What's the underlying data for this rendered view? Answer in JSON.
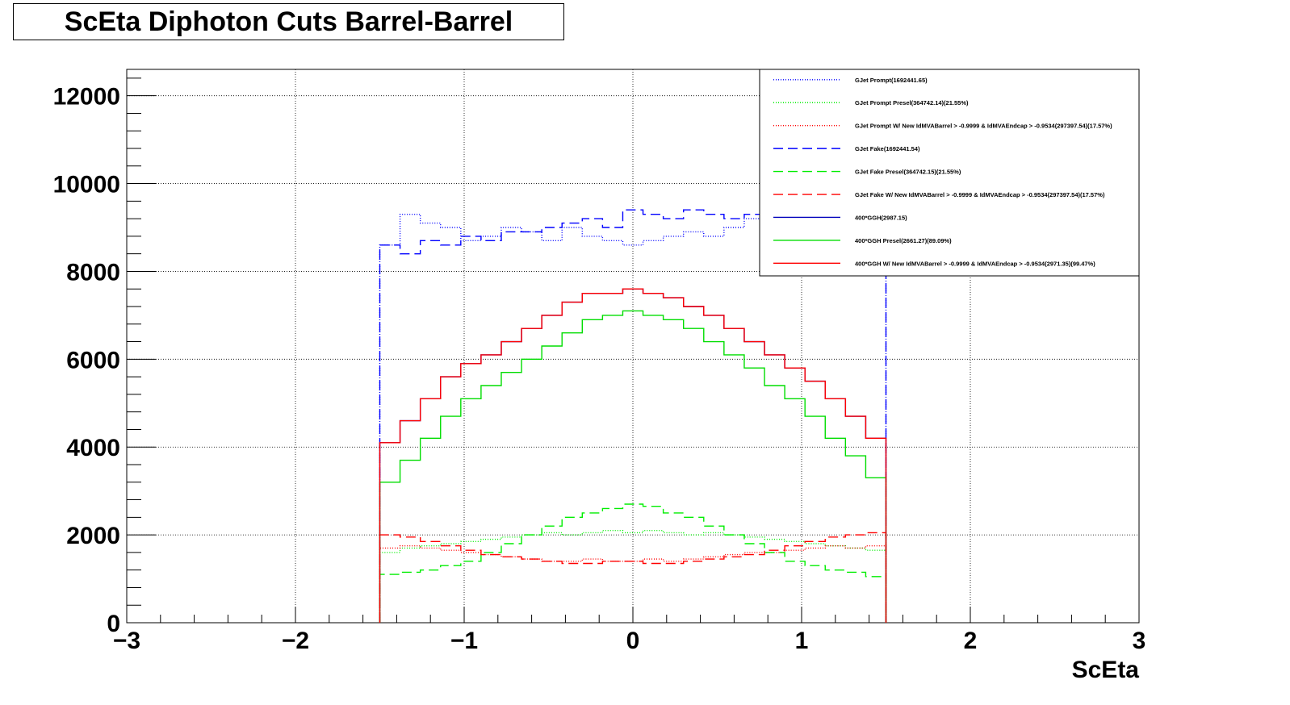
{
  "chart_data": {
    "type": "line",
    "title": "ScEta Diphoton Cuts Barrel-Barrel",
    "xlabel": "ScEta",
    "ylabel": "",
    "xlim": [
      -3,
      3
    ],
    "ylim": [
      0,
      12600
    ],
    "x_ticks": [
      {
        "value": -3,
        "label": "−3"
      },
      {
        "value": -2,
        "label": "−2"
      },
      {
        "value": -1,
        "label": "−1"
      },
      {
        "value": 0,
        "label": "0"
      },
      {
        "value": 1,
        "label": "1"
      },
      {
        "value": 2,
        "label": "2"
      },
      {
        "value": 3,
        "label": "3"
      }
    ],
    "y_ticks": [
      {
        "value": 0,
        "label": "0"
      },
      {
        "value": 2000,
        "label": "2000"
      },
      {
        "value": 4000,
        "label": "4000"
      },
      {
        "value": 6000,
        "label": "6000"
      },
      {
        "value": 8000,
        "label": "8000"
      },
      {
        "value": 10000,
        "label": "10000"
      },
      {
        "value": 12000,
        "label": "12000"
      }
    ],
    "grid": true,
    "legend_position": "top-right",
    "x": [
      -1.44,
      -1.32,
      -1.2,
      -1.08,
      -0.96,
      -0.84,
      -0.72,
      -0.6,
      -0.48,
      -0.36,
      -0.24,
      -0.12,
      0.0,
      0.12,
      0.24,
      0.36,
      0.48,
      0.6,
      0.72,
      0.84,
      0.96,
      1.08,
      1.2,
      1.32,
      1.44
    ],
    "series": [
      {
        "name": "GJet Prompt(1692441.65)",
        "color": "#0000ff",
        "dash": "dot",
        "values": [
          8600,
          9300,
          9100,
          9000,
          8700,
          8800,
          9000,
          8900,
          8700,
          9000,
          8800,
          8700,
          8600,
          8700,
          8800,
          8900,
          8800,
          9000,
          9200,
          9100,
          9000,
          8900,
          8800,
          8900,
          8700
        ]
      },
      {
        "name": "GJet Prompt Presel(364742.14)(21.55%)",
        "color": "#00ee00",
        "dash": "dot",
        "values": [
          1600,
          1700,
          1750,
          1800,
          1850,
          1900,
          1950,
          2000,
          2050,
          2000,
          2050,
          2100,
          2050,
          2100,
          2050,
          2000,
          2050,
          2000,
          1950,
          1900,
          1850,
          1800,
          1750,
          1700,
          1650
        ]
      },
      {
        "name": "GJet Prompt W/ New IdMVABarrel > -0.9999 & IdMVAEndcap > -0.9534(297397.54)(17.57%)",
        "color": "#ff0000",
        "dash": "dot",
        "values": [
          1700,
          1750,
          1700,
          1650,
          1600,
          1550,
          1500,
          1450,
          1400,
          1400,
          1450,
          1400,
          1400,
          1450,
          1400,
          1450,
          1500,
          1550,
          1600,
          1600,
          1650,
          1700,
          1750,
          1700,
          1750
        ]
      },
      {
        "name": "GJet Fake(1692441.54)",
        "color": "#0000ff",
        "dash": "dash",
        "values": [
          8600,
          8400,
          8700,
          8600,
          8800,
          8700,
          8900,
          8900,
          9000,
          9100,
          9200,
          9000,
          9400,
          9300,
          9200,
          9400,
          9300,
          9200,
          9300,
          9100,
          9200,
          9100,
          8900,
          9000,
          8800
        ]
      },
      {
        "name": "GJet Fake Presel(364742.15)(21.55%)",
        "color": "#00ee00",
        "dash": "dash",
        "values": [
          1100,
          1150,
          1200,
          1300,
          1400,
          1600,
          1800,
          2000,
          2200,
          2400,
          2500,
          2600,
          2700,
          2650,
          2500,
          2400,
          2200,
          2000,
          1800,
          1600,
          1400,
          1300,
          1200,
          1150,
          1050
        ]
      },
      {
        "name": "GJet Fake W/ New IdMVABarrel > -0.9999 & IdMVAEndcap > -0.9534(297397.54)(17.57%)",
        "color": "#ff0000",
        "dash": "dash",
        "values": [
          2000,
          1950,
          1850,
          1750,
          1650,
          1550,
          1500,
          1450,
          1400,
          1350,
          1350,
          1400,
          1400,
          1350,
          1350,
          1400,
          1450,
          1500,
          1550,
          1650,
          1750,
          1850,
          1950,
          2000,
          2050
        ]
      },
      {
        "name": "400*GGH(2987.15)",
        "color": "#0000bb",
        "dash": "solid",
        "values": [
          4100,
          4600,
          5100,
          5600,
          5900,
          6100,
          6400,
          6700,
          7000,
          7300,
          7500,
          7500,
          7600,
          7500,
          7400,
          7200,
          7000,
          6700,
          6400,
          6100,
          5800,
          5500,
          5100,
          4700,
          4200
        ]
      },
      {
        "name": "400*GGH Presel(2661.27)(89.09%)",
        "color": "#00dd00",
        "dash": "solid",
        "values": [
          3200,
          3700,
          4200,
          4700,
          5100,
          5400,
          5700,
          6000,
          6300,
          6600,
          6900,
          7000,
          7100,
          7000,
          6900,
          6700,
          6400,
          6100,
          5800,
          5400,
          5100,
          4700,
          4200,
          3800,
          3300
        ]
      },
      {
        "name": "400*GGH W/ New IdMVABarrel > -0.9999 & IdMVAEndcap > -0.9534(2971.35)(99.47%)",
        "color": "#ff0000",
        "dash": "solid",
        "values": [
          4100,
          4600,
          5100,
          5600,
          5900,
          6100,
          6400,
          6700,
          7000,
          7300,
          7500,
          7500,
          7600,
          7500,
          7400,
          7200,
          7000,
          6700,
          6400,
          6100,
          5800,
          5500,
          5100,
          4700,
          4200
        ]
      }
    ]
  }
}
